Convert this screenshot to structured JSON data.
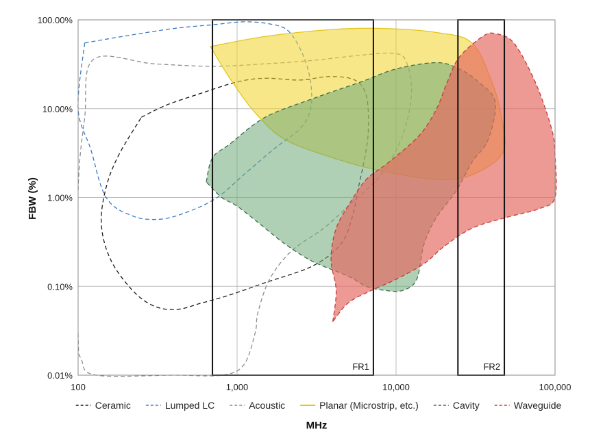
{
  "chart_data": {
    "type": "area",
    "title": "",
    "xlabel": "MHz",
    "ylabel": "FBW (%)",
    "xscale": "log",
    "yscale": "log",
    "xlim": [
      100,
      100000
    ],
    "ylim": [
      0.01,
      100
    ],
    "x_ticks": [
      {
        "value": 100,
        "label": "100"
      },
      {
        "value": 1000,
        "label": "1,000"
      },
      {
        "value": 10000,
        "label": "10,000"
      },
      {
        "value": 100000,
        "label": "100,000"
      }
    ],
    "y_ticks": [
      {
        "value": 100,
        "label": "100.00%"
      },
      {
        "value": 10,
        "label": "10.00%"
      },
      {
        "value": 1,
        "label": "1.00%"
      },
      {
        "value": 0.1,
        "label": "0.10%"
      },
      {
        "value": 0.01,
        "label": "0.01%"
      }
    ],
    "grid": true,
    "legend_position": "bottom",
    "bands": [
      {
        "label": "FR1",
        "x_range": [
          700,
          7200
        ],
        "y_range": [
          0.01,
          100
        ]
      },
      {
        "label": "FR2",
        "x_range": [
          24500,
          48000
        ],
        "y_range": [
          0.01,
          100
        ]
      }
    ],
    "series": [
      {
        "name": "Ceramic",
        "color": "#1a1a1a",
        "style": "dashed",
        "fill": null,
        "points": [
          [
            250,
            8.0
          ],
          [
            360,
            11.0
          ],
          [
            600,
            15.0
          ],
          [
            1000,
            20.0
          ],
          [
            1500,
            22.0
          ],
          [
            2500,
            21.0
          ],
          [
            3800,
            23.0
          ],
          [
            5500,
            21.0
          ],
          [
            6500,
            14.0
          ],
          [
            6700,
            6.0
          ],
          [
            6400,
            3.0
          ],
          [
            5800,
            1.3
          ],
          [
            5300,
            0.6
          ],
          [
            4500,
            0.3
          ],
          [
            3000,
            0.17
          ],
          [
            1500,
            0.11
          ],
          [
            900,
            0.08
          ],
          [
            600,
            0.065
          ],
          [
            420,
            0.055
          ],
          [
            300,
            0.06
          ],
          [
            220,
            0.09
          ],
          [
            160,
            0.2
          ],
          [
            140,
            0.5
          ],
          [
            150,
            1.3
          ],
          [
            180,
            3.0
          ],
          [
            250,
            8.0
          ]
        ]
      },
      {
        "name": "Lumped LC",
        "color": "#3b79c2",
        "style": "dashed",
        "fill": null,
        "points": [
          [
            110,
            55
          ],
          [
            200,
            66
          ],
          [
            400,
            80
          ],
          [
            700,
            88
          ],
          [
            1100,
            95
          ],
          [
            1600,
            90
          ],
          [
            2100,
            75
          ],
          [
            2600,
            40
          ],
          [
            2900,
            20
          ],
          [
            2900,
            10
          ],
          [
            2500,
            6
          ],
          [
            1700,
            3.5
          ],
          [
            1100,
            1.8
          ],
          [
            750,
            1.0
          ],
          [
            500,
            0.7
          ],
          [
            330,
            0.57
          ],
          [
            220,
            0.62
          ],
          [
            150,
            1.0
          ],
          [
            120,
            3.5
          ],
          [
            100,
            10
          ],
          [
            110,
            55
          ]
        ]
      },
      {
        "name": "Acoustic",
        "color": "#8c8c8c",
        "style": "dashed",
        "fill": null,
        "points": [
          [
            100,
            1.2
          ],
          [
            110,
            8.0
          ],
          [
            125,
            36.0
          ],
          [
            300,
            32.0
          ],
          [
            700,
            30.0
          ],
          [
            1500,
            32.0
          ],
          [
            3000,
            35.0
          ],
          [
            6000,
            40.0
          ],
          [
            9500,
            42.0
          ],
          [
            11500,
            35.0
          ],
          [
            12500,
            15.0
          ],
          [
            11000,
            5.0
          ],
          [
            8000,
            1.8
          ],
          [
            5000,
            0.8
          ],
          [
            3500,
            0.45
          ],
          [
            2200,
            0.25
          ],
          [
            1600,
            0.12
          ],
          [
            1350,
            0.05
          ],
          [
            1300,
            0.03
          ],
          [
            1100,
            0.013
          ],
          [
            800,
            0.01
          ],
          [
            400,
            0.01
          ],
          [
            130,
            0.01
          ],
          [
            105,
            0.015
          ],
          [
            100,
            0.03
          ]
        ]
      },
      {
        "name": "Planar (Microstrip, etc.)",
        "color": "#e2c521",
        "style": "solid",
        "fill": "rgba(242,211,40,0.55)",
        "points": [
          [
            680,
            50
          ],
          [
            1500,
            65
          ],
          [
            4000,
            78
          ],
          [
            8500,
            80
          ],
          [
            18000,
            72
          ],
          [
            30000,
            55
          ],
          [
            40000,
            20
          ],
          [
            46000,
            8.0
          ],
          [
            47000,
            3.2
          ],
          [
            30000,
            1.8
          ],
          [
            18000,
            1.6
          ],
          [
            8000,
            2.0
          ],
          [
            4000,
            2.8
          ],
          [
            2000,
            4.5
          ],
          [
            1300,
            9.0
          ],
          [
            900,
            22.0
          ],
          [
            680,
            50
          ]
        ]
      },
      {
        "name": "Cavity",
        "color": "#3c6e4b",
        "style": "dashed",
        "fill": "rgba(110,170,120,0.55)",
        "points": [
          [
            640,
            1.5
          ],
          [
            700,
            2.8
          ],
          [
            900,
            4.0
          ],
          [
            1500,
            8.0
          ],
          [
            3000,
            13.0
          ],
          [
            6000,
            20.0
          ],
          [
            10000,
            28.0
          ],
          [
            18000,
            33.0
          ],
          [
            25000,
            28.0
          ],
          [
            33000,
            20.0
          ],
          [
            42000,
            12.0
          ],
          [
            38000,
            4.5
          ],
          [
            30000,
            2.5
          ],
          [
            24000,
            1.2
          ],
          [
            18000,
            0.6
          ],
          [
            15000,
            0.3
          ],
          [
            13500,
            0.12
          ],
          [
            11000,
            0.09
          ],
          [
            8500,
            0.09
          ],
          [
            6500,
            0.1
          ],
          [
            5000,
            0.13
          ],
          [
            3000,
            0.19
          ],
          [
            2000,
            0.3
          ],
          [
            1400,
            0.5
          ],
          [
            1000,
            0.8
          ],
          [
            800,
            1.0
          ],
          [
            640,
            1.5
          ]
        ]
      },
      {
        "name": "Waveguide",
        "color": "#c53b3b",
        "style": "dashed",
        "fill": "rgba(228,105,98,0.68)",
        "points": [
          [
            4000,
            0.04
          ],
          [
            4200,
            0.09
          ],
          [
            3900,
            0.2
          ],
          [
            4200,
            0.45
          ],
          [
            5200,
            0.9
          ],
          [
            6500,
            1.6
          ],
          [
            9000,
            2.5
          ],
          [
            14000,
            5.0
          ],
          [
            18000,
            10.0
          ],
          [
            21000,
            20.0
          ],
          [
            25000,
            38.0
          ],
          [
            35000,
            65.0
          ],
          [
            42000,
            70.0
          ],
          [
            55000,
            55.0
          ],
          [
            75000,
            20.0
          ],
          [
            95000,
            6.0
          ],
          [
            100000,
            3.0
          ],
          [
            100000,
            1.0
          ],
          [
            80000,
            0.75
          ],
          [
            50000,
            0.6
          ],
          [
            30000,
            0.45
          ],
          [
            20000,
            0.28
          ],
          [
            15000,
            0.18
          ],
          [
            10000,
            0.12
          ],
          [
            7000,
            0.09
          ],
          [
            5000,
            0.065
          ],
          [
            4000,
            0.04
          ]
        ]
      }
    ]
  }
}
